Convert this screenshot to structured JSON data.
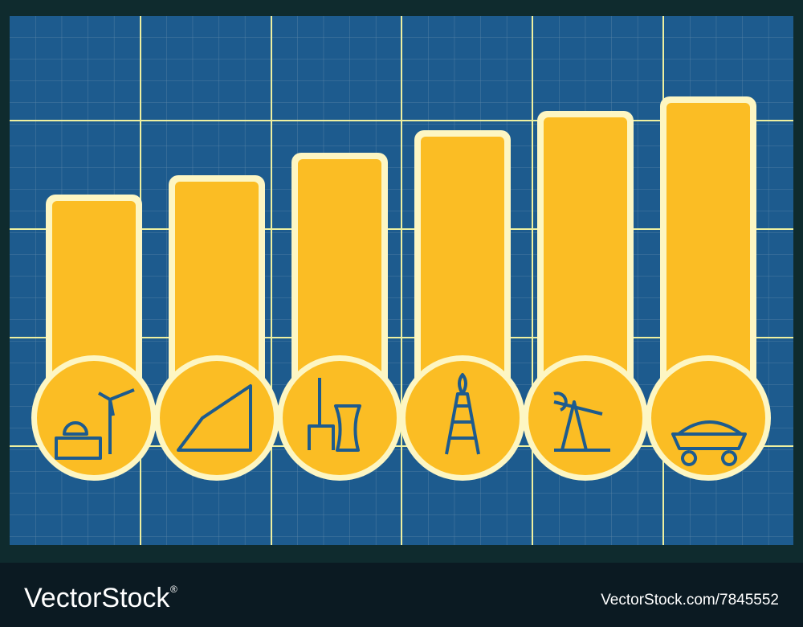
{
  "watermark": {
    "brand": "VectorStock",
    "registered": "®",
    "url": "VectorStock.com/7845552"
  }
}
